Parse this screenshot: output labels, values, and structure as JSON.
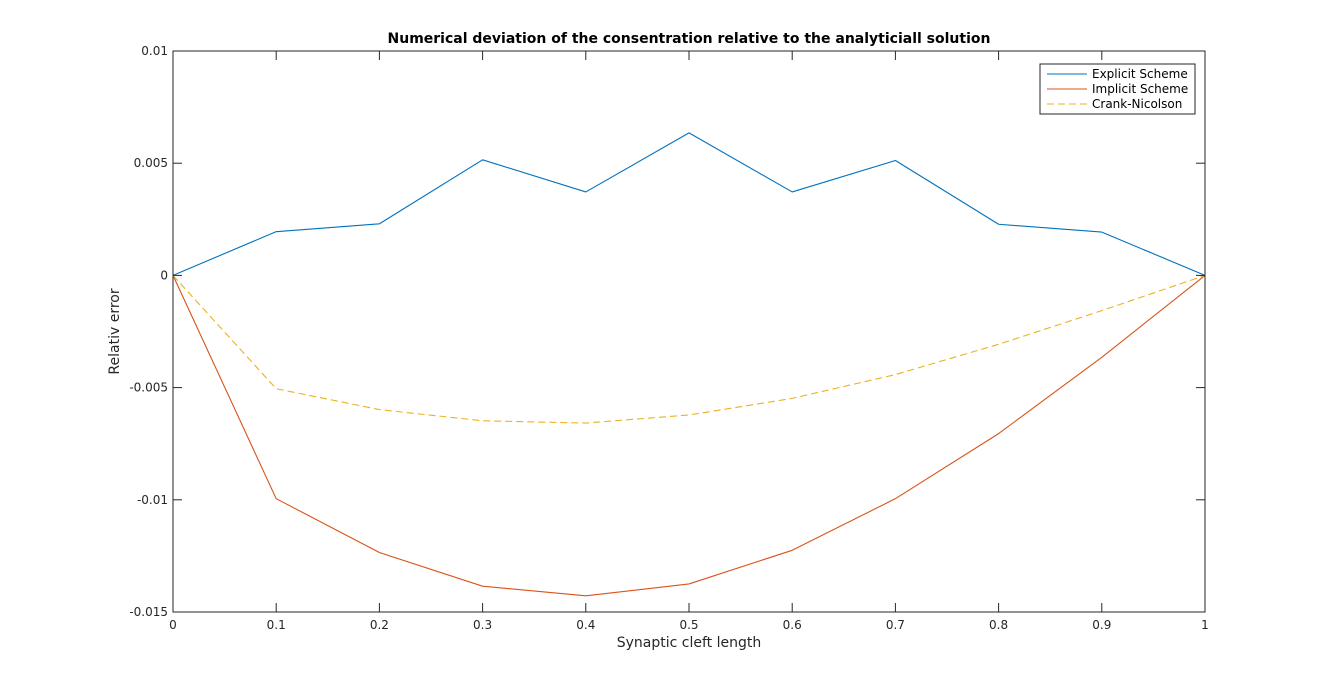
{
  "chart_data": {
    "type": "line",
    "title": "Numerical deviation of the consentration relative to the analyticiall solution",
    "xlabel": "Synaptic cleft length",
    "ylabel": "Relativ error",
    "xlim": [
      0,
      1
    ],
    "ylim": [
      -0.015,
      0.01
    ],
    "x_ticks": [
      "0",
      "0.1",
      "0.2",
      "0.3",
      "0.4",
      "0.5",
      "0.6",
      "0.7",
      "0.8",
      "0.9",
      "1"
    ],
    "y_ticks": [
      "0.01",
      "0.005",
      "0",
      "-0.005",
      "-0.01",
      "-0.015"
    ],
    "grid": false,
    "legend_position": "top-right",
    "x": [
      0,
      0.1,
      0.2,
      0.3,
      0.4,
      0.5,
      0.6,
      0.7,
      0.8,
      0.9,
      1
    ],
    "series": [
      {
        "name": "Explicit Scheme",
        "color": "#0072BD",
        "style": "solid",
        "values": [
          0,
          0.00195,
          0.0023,
          0.00515,
          0.00372,
          0.00635,
          0.00372,
          0.00512,
          0.00228,
          0.00193,
          0
        ]
      },
      {
        "name": "Implicit Scheme",
        "color": "#D95319",
        "style": "solid",
        "values": [
          0,
          -0.00995,
          -0.01235,
          -0.01385,
          -0.01428,
          -0.01375,
          -0.01225,
          -0.00995,
          -0.00705,
          -0.00365,
          0
        ]
      },
      {
        "name": "Crank-Nicolson",
        "color": "#EDB120",
        "style": "dashed",
        "values": [
          0,
          -0.00505,
          -0.00598,
          -0.00648,
          -0.00658,
          -0.00622,
          -0.00548,
          -0.00442,
          -0.00307,
          -0.00157,
          0
        ]
      }
    ]
  }
}
